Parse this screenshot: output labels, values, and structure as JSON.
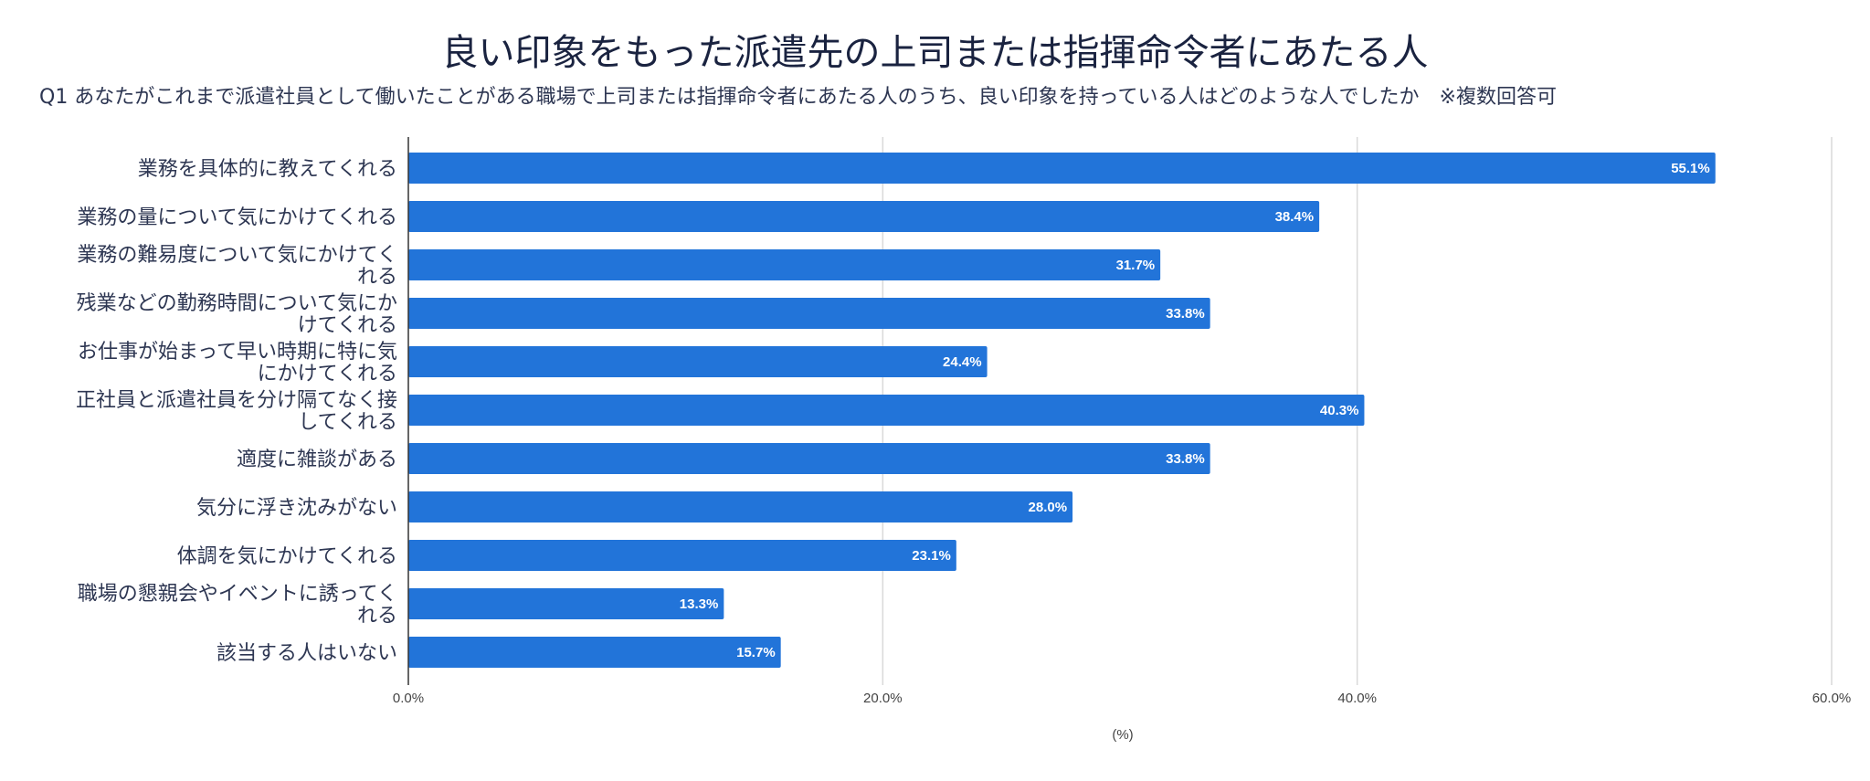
{
  "chart_data": {
    "type": "bar",
    "orientation": "horizontal",
    "title": "良い印象をもった派遣先の上司または指揮命令者にあたる人",
    "subtitle": "Q1 あなたがこれまで派遣社員として働いたことがある職場で上司または指揮命令者にあたる人のうち、良い印象を持っている人はどのような人でしたか　※複数回答可",
    "categories": [
      [
        "業務を具体的に教えてくれる"
      ],
      [
        "業務の量について気にかけてくれる"
      ],
      [
        "業務の難易度について気にかけてく",
        "れる"
      ],
      [
        "残業などの勤務時間について気にか",
        "けてくれる"
      ],
      [
        "お仕事が始まって早い時期に特に気",
        "にかけてくれる"
      ],
      [
        "正社員と派遣社員を分け隔てなく接",
        "してくれる"
      ],
      [
        "適度に雑談がある"
      ],
      [
        "気分に浮き沈みがない"
      ],
      [
        "体調を気にかけてくれる"
      ],
      [
        "職場の懇親会やイベントに誘ってく",
        "れる"
      ],
      [
        "該当する人はいない"
      ]
    ],
    "values": [
      55.1,
      38.4,
      31.7,
      33.8,
      24.4,
      40.3,
      33.8,
      28.0,
      23.1,
      13.3,
      15.7
    ],
    "value_labels": [
      "55.1%",
      "38.4%",
      "31.7%",
      "33.8%",
      "24.4%",
      "40.3%",
      "33.8%",
      "28.0%",
      "23.1%",
      "13.3%",
      "15.7%"
    ],
    "xlim": [
      0,
      60
    ],
    "x_ticks": [
      0,
      20,
      40,
      60
    ],
    "x_tick_labels": [
      "0.0%",
      "20.0%",
      "40.0%",
      "60.0%"
    ],
    "xlabel": "(%)",
    "grid": true,
    "bar_color": "#2274d9",
    "grid_color": "#d9d9d9",
    "axis_color": "#333333"
  }
}
